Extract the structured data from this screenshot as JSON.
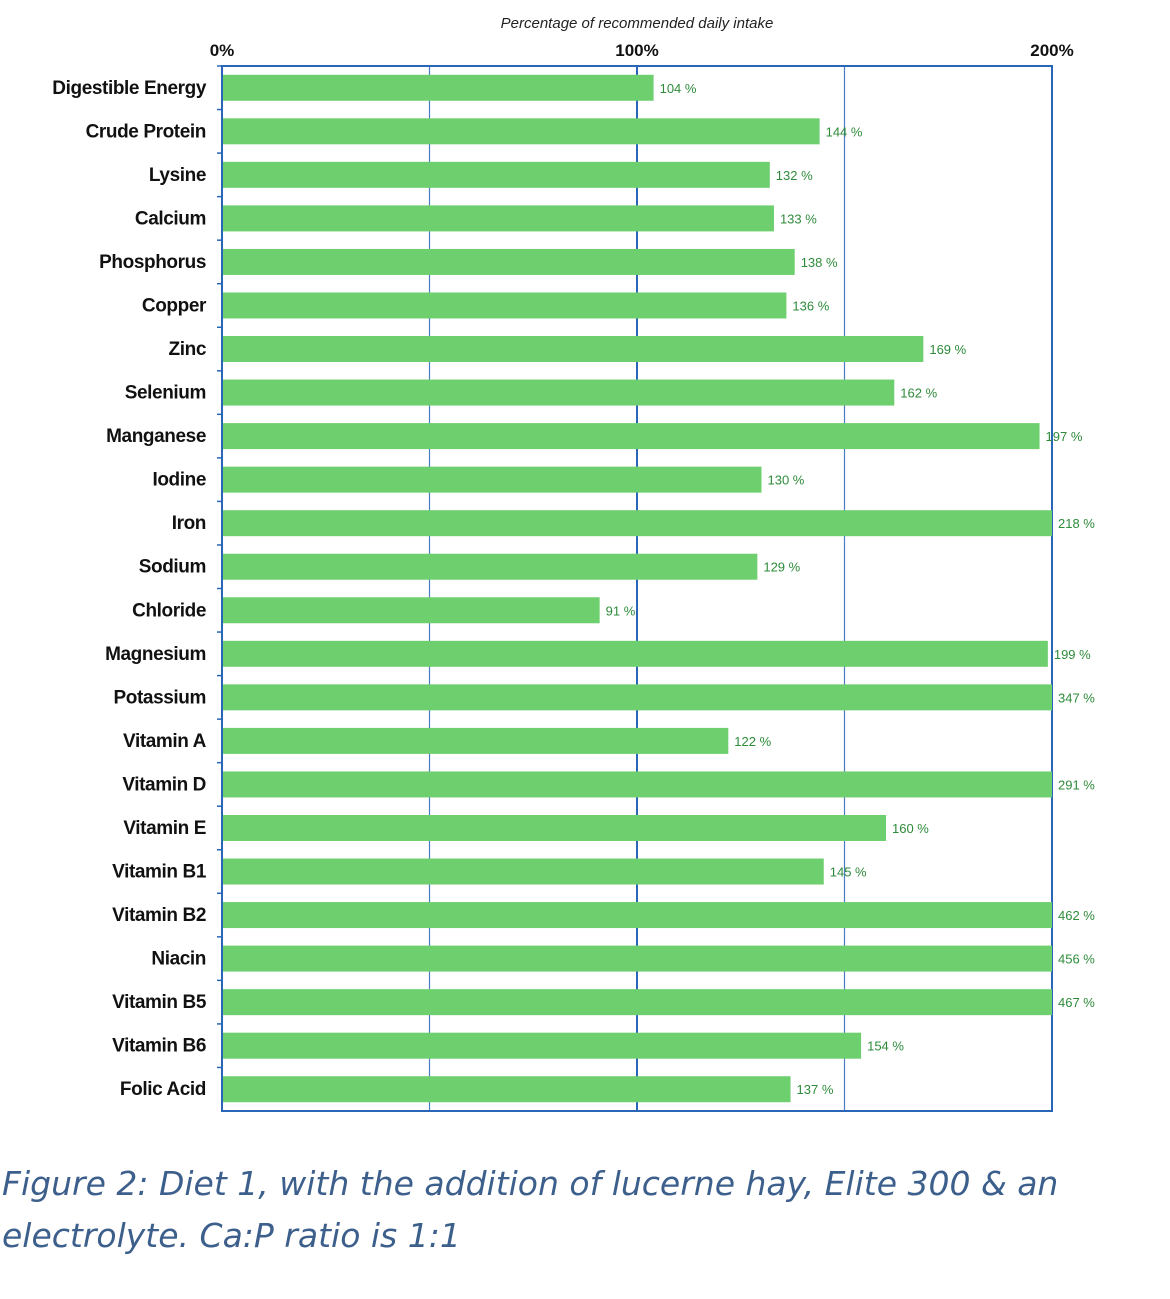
{
  "chart_data": {
    "type": "bar",
    "orientation": "horizontal",
    "title": "Percentage of recommended daily intake",
    "xlim": [
      0,
      200
    ],
    "x_ticks": [
      {
        "value": 0,
        "label": "0%"
      },
      {
        "value": 100,
        "label": "100%"
      },
      {
        "value": 200,
        "label": "200%"
      }
    ],
    "gridlines": [
      50,
      100,
      150,
      200
    ],
    "bar_color": "#6ecf6e",
    "label_color": "#2e8b3a",
    "axis_color": "#2a66b8",
    "categories": [
      "Digestible Energy",
      "Crude Protein",
      "Lysine",
      "Calcium",
      "Phosphorus",
      "Copper",
      "Zinc",
      "Selenium",
      "Manganese",
      "Iodine",
      "Iron",
      "Sodium",
      "Chloride",
      "Magnesium",
      "Potassium",
      "Vitamin A",
      "Vitamin D",
      "Vitamin E",
      "Vitamin B1",
      "Vitamin B2",
      "Niacin",
      "Vitamin B5",
      "Vitamin B6",
      "Folic Acid"
    ],
    "values": [
      104,
      144,
      132,
      133,
      138,
      136,
      169,
      162,
      197,
      130,
      218,
      129,
      91,
      199,
      347,
      122,
      291,
      160,
      145,
      462,
      456,
      467,
      154,
      137
    ],
    "data_labels": [
      "104 %",
      "144 %",
      "132 %",
      "133 %",
      "138 %",
      "136 %",
      "169 %",
      "162 %",
      "197 %",
      "130 %",
      "218 %",
      "129 %",
      "91 %",
      "199 %",
      "347 %",
      "122 %",
      "291 %",
      "160 %",
      "145 %",
      "462 %",
      "456 %",
      "467 %",
      "154 %",
      "137 %"
    ]
  },
  "caption": "Figure 2: Diet 1, with the addition of lucerne hay, Elite 300 & an electrolyte. Ca:P ratio is 1:1"
}
